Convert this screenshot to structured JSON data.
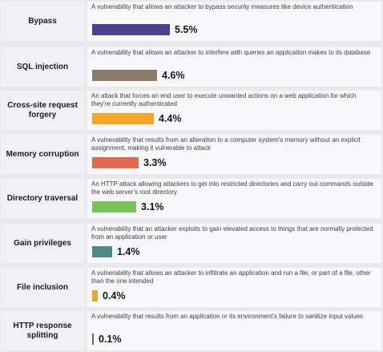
{
  "chart_data": {
    "type": "bar",
    "orientation": "horizontal",
    "unit": "%",
    "rows": [
      {
        "category": "Bypass",
        "description": "A vulnerability that allows an attacker to bypass security measures like device authentication",
        "value": 5.5,
        "label": "5.5%",
        "color": "#4a4291"
      },
      {
        "category": "SQL injection",
        "description": "A vulnerability that allows an attacker to interfere with queries an application makes to its database",
        "value": 4.6,
        "label": "4.6%",
        "color": "#8b7d6a"
      },
      {
        "category": "Cross-site request forgery",
        "description": "An attack that forces an end user to execute unwanted actions on a web application for which they're currently authenticated",
        "value": 4.4,
        "label": "4.4%",
        "color": "#f5a623"
      },
      {
        "category": "Memory corruption",
        "description": "A vulnerability that results from an alteration to a computer system's memory without an explicit assignment, making it vulnerable to attack",
        "value": 3.3,
        "label": "3.3%",
        "color": "#de6b50"
      },
      {
        "category": "Directory traversal",
        "description": "An HTTP attack allowing attackers to get into restricted directories and carry out commands outside the web server's root directory",
        "value": 3.1,
        "label": "3.1%",
        "color": "#79c35b"
      },
      {
        "category": "Gain privileges",
        "description": "A vulnerability that an attacker exploits to gain elevated access to things that are normally protected from an application or user",
        "value": 1.4,
        "label": "1.4%",
        "color": "#4f8a86"
      },
      {
        "category": "File inclusion",
        "description": "A vulnerability that allows an attacker to infiltrate an application and run a file, or part of a file, other than the one intended",
        "value": 0.4,
        "label": "0.4%",
        "color": "#e7a72b"
      },
      {
        "category": "HTTP response splitting",
        "description": "A vulnerability that results from an application or its environment's failure to sanitize input values",
        "value": 0.1,
        "label": "0.1%",
        "color": "#666666"
      }
    ]
  }
}
